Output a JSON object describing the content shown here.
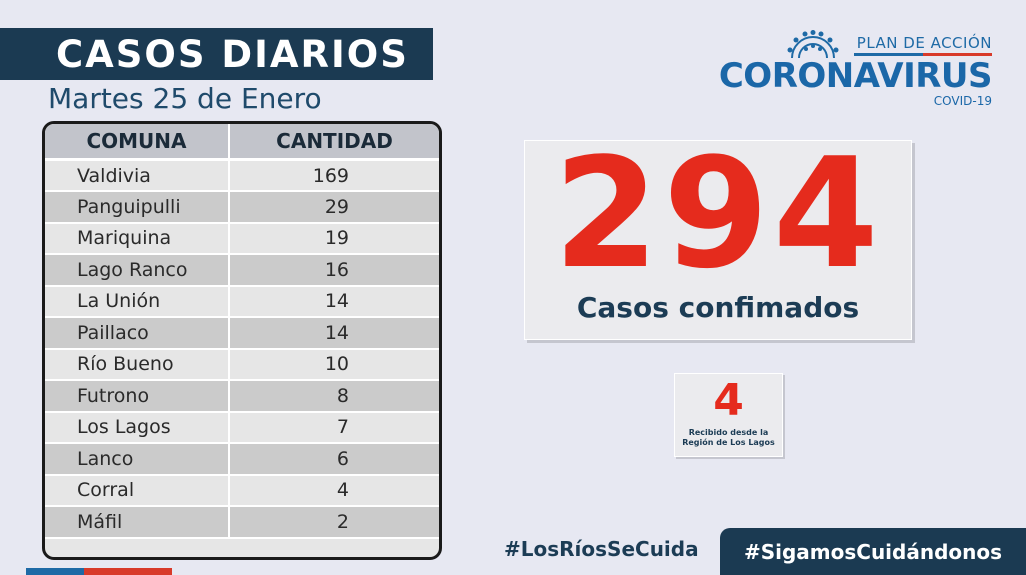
{
  "header": {
    "title": "CASOS DIARIOS",
    "date": "Martes 25 de Enero"
  },
  "logo": {
    "plan": "PLAN DE ACCIÓN",
    "main": "CORONAVIRUS",
    "sub": "COVID-19"
  },
  "table": {
    "columns": [
      "COMUNA",
      "CANTIDAD"
    ],
    "rows": [
      {
        "comuna": "Valdivia",
        "cantidad": "169"
      },
      {
        "comuna": "Panguipulli",
        "cantidad": "29"
      },
      {
        "comuna": "Mariquina",
        "cantidad": "19"
      },
      {
        "comuna": "Lago Ranco",
        "cantidad": "16"
      },
      {
        "comuna": "La Unión",
        "cantidad": "14"
      },
      {
        "comuna": "Paillaco",
        "cantidad": "14"
      },
      {
        "comuna": "Río Bueno",
        "cantidad": "10"
      },
      {
        "comuna": "Futrono",
        "cantidad": "8"
      },
      {
        "comuna": "Los Lagos",
        "cantidad": "7"
      },
      {
        "comuna": "Lanco",
        "cantidad": "6"
      },
      {
        "comuna": "Corral",
        "cantidad": "4"
      },
      {
        "comuna": "Máfil",
        "cantidad": "2"
      }
    ]
  },
  "total": {
    "value": "294",
    "label": "Casos confimados"
  },
  "received": {
    "value": "4",
    "label_line1": "Recibido desde la",
    "label_line2": "Región de Los Lagos"
  },
  "footer": {
    "hashtag1": "#LosRíosSeCuida",
    "hashtag2": "#SigamosCuidándonos"
  },
  "colors": {
    "navy": "#1b3a52",
    "red": "#e52b1d",
    "blue": "#1b67a8"
  }
}
